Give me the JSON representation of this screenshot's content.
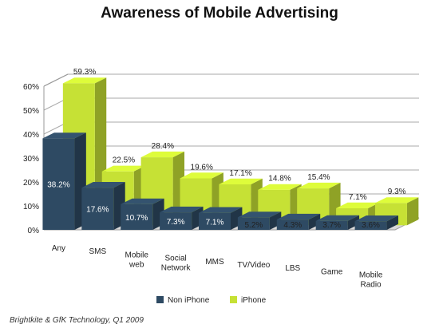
{
  "chart_data": {
    "type": "bar",
    "title": "Awareness of Mobile Advertising",
    "source": "Brightkite & GfK Technology, Q1 2009",
    "xlabel": "",
    "ylabel": "",
    "ylim": [
      0,
      60
    ],
    "y_ticks": [
      "0%",
      "10%",
      "20%",
      "30%",
      "40%",
      "50%",
      "60%"
    ],
    "grid": true,
    "legend_position": "bottom",
    "categories": [
      [
        "Any"
      ],
      [
        "SMS"
      ],
      [
        "Mobile",
        "web"
      ],
      [
        "Social",
        "Network"
      ],
      [
        "MMS"
      ],
      [
        "TV/Video"
      ],
      [
        "LBS"
      ],
      [
        "Game"
      ],
      [
        "Mobile",
        "Radio"
      ]
    ],
    "series": [
      {
        "name": "Non iPhone",
        "color": "#2e4a63",
        "values": [
          38.2,
          17.6,
          10.7,
          7.3,
          7.1,
          5.2,
          4.3,
          3.7,
          3.6
        ],
        "labels": [
          "38.2%",
          "17.6%",
          "10.7%",
          "7.3%",
          "7.1%",
          "5.2%",
          "4.3%",
          "3.7%",
          "3.6%"
        ]
      },
      {
        "name": "iPhone",
        "color": "#c6e135",
        "values": [
          59.3,
          22.5,
          28.4,
          19.6,
          17.1,
          14.8,
          15.4,
          7.1,
          9.3
        ],
        "labels": [
          "59.3%",
          "22.5%",
          "28.4%",
          "19.6%",
          "17.1%",
          "14.8%",
          "15.4%",
          "7.1%",
          "9.3%"
        ]
      }
    ]
  }
}
